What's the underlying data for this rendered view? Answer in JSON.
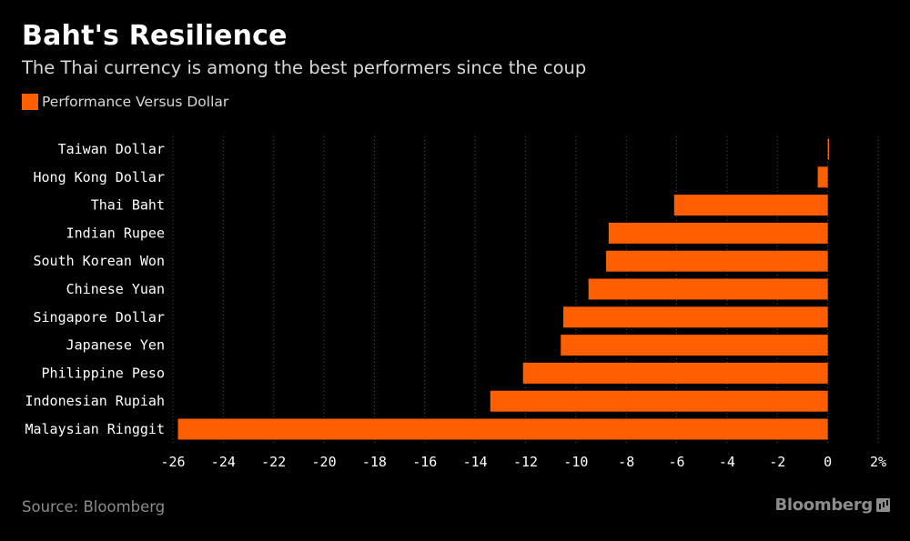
{
  "header": {
    "title": "Baht's Resilience",
    "subtitle": "The Thai currency is among the best performers since the coup"
  },
  "legend": {
    "label": "Performance Versus Dollar",
    "color": "#ff5f00"
  },
  "footer": {
    "source": "Source: Bloomberg",
    "brand": "Bloomberg"
  },
  "chart_data": {
    "type": "bar",
    "orientation": "horizontal",
    "categories": [
      "Taiwan Dollar",
      "Hong Kong Dollar",
      "Thai Baht",
      "Indian Rupee",
      "South Korean Won",
      "Chinese Yuan",
      "Singapore Dollar",
      "Japanese Yen",
      "Philippine Peso",
      "Indonesian Rupiah",
      "Malaysian Ringgit"
    ],
    "series": [
      {
        "name": "Performance Versus Dollar",
        "color": "#ff5f00",
        "values": [
          0.05,
          -0.4,
          -6.1,
          -8.7,
          -8.8,
          -9.5,
          -10.5,
          -10.6,
          -12.1,
          -13.4,
          -25.8
        ]
      }
    ],
    "xlim": [
      -26,
      2
    ],
    "xticks": [
      -26,
      -24,
      -22,
      -20,
      -18,
      -16,
      -14,
      -12,
      -10,
      -8,
      -6,
      -4,
      -2,
      0,
      2
    ],
    "xtick_labels": [
      "-26",
      "-24",
      "-22",
      "-20",
      "-18",
      "-16",
      "-14",
      "-12",
      "-10",
      "-8",
      "-6",
      "-4",
      "-2",
      "0",
      "2%"
    ],
    "grid": "vertical-dotted",
    "legend_position": "top-left"
  }
}
